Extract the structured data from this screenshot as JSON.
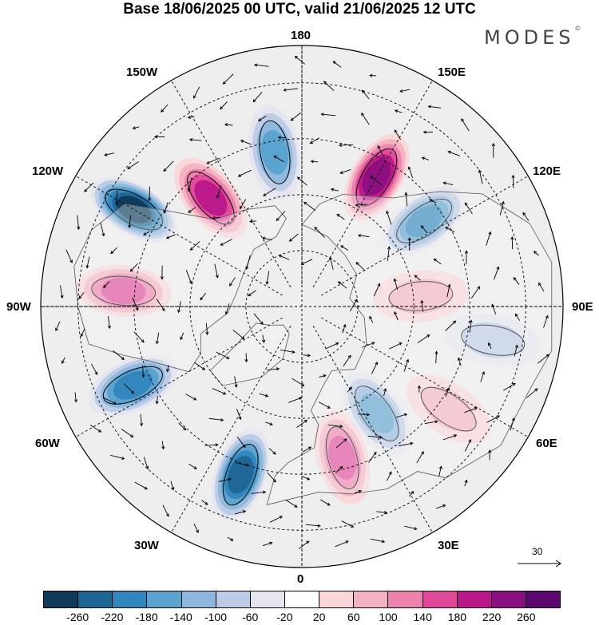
{
  "title": "Base 18/06/2025 00 UTC, valid 21/06/2025 12 UTC",
  "brand": "MODES",
  "brand_mark": "©",
  "longitude_labels": {
    "lon_180": "180",
    "lon_150e": "150E",
    "lon_120e": "120E",
    "lon_90e": "90E",
    "lon_60e": "60E",
    "lon_30e": "30E",
    "lon_0": "0",
    "lon_30w": "30W",
    "lon_60w": "60W",
    "lon_90w": "90W",
    "lon_120w": "120W",
    "lon_150w": "150W"
  },
  "reference_vector": {
    "label": "30"
  },
  "colorbar": {
    "colors": [
      "#0f3a5a",
      "#1d6595",
      "#2f86bd",
      "#5aa2cf",
      "#8db7dd",
      "#bccbe6",
      "#e5e5f0",
      "#ffffff",
      "#f9d6d8",
      "#f3b2c2",
      "#ec83ae",
      "#e0499a",
      "#b9178a",
      "#8a0f80",
      "#5c0870"
    ],
    "labels": [
      "-260",
      "-220",
      "-180",
      "-140",
      "-100",
      "-60",
      "-20",
      "20",
      "60",
      "100",
      "140",
      "180",
      "220",
      "260"
    ]
  },
  "anomaly_centers": [
    {
      "lon": -140,
      "lat": 52,
      "value": 200
    },
    {
      "lon": -170,
      "lat": 48,
      "value": -160
    },
    {
      "lon": 150,
      "lat": 50,
      "value": 240
    },
    {
      "lon": 125,
      "lat": 50,
      "value": -200
    },
    {
      "lon": -120,
      "lat": 38,
      "value": -260
    },
    {
      "lon": -95,
      "lat": 42,
      "value": 160
    },
    {
      "lon": -65,
      "lat": 40,
      "value": -200
    },
    {
      "lon": -20,
      "lat": 42,
      "value": -220
    },
    {
      "lon": 15,
      "lat": 48,
      "value": 150
    },
    {
      "lon": 35,
      "lat": 55,
      "value": -150
    },
    {
      "lon": 55,
      "lat": 42,
      "value": 60
    },
    {
      "lon": 95,
      "lat": 58,
      "value": 80
    },
    {
      "lon": 80,
      "lat": 38,
      "value": -80
    }
  ]
}
